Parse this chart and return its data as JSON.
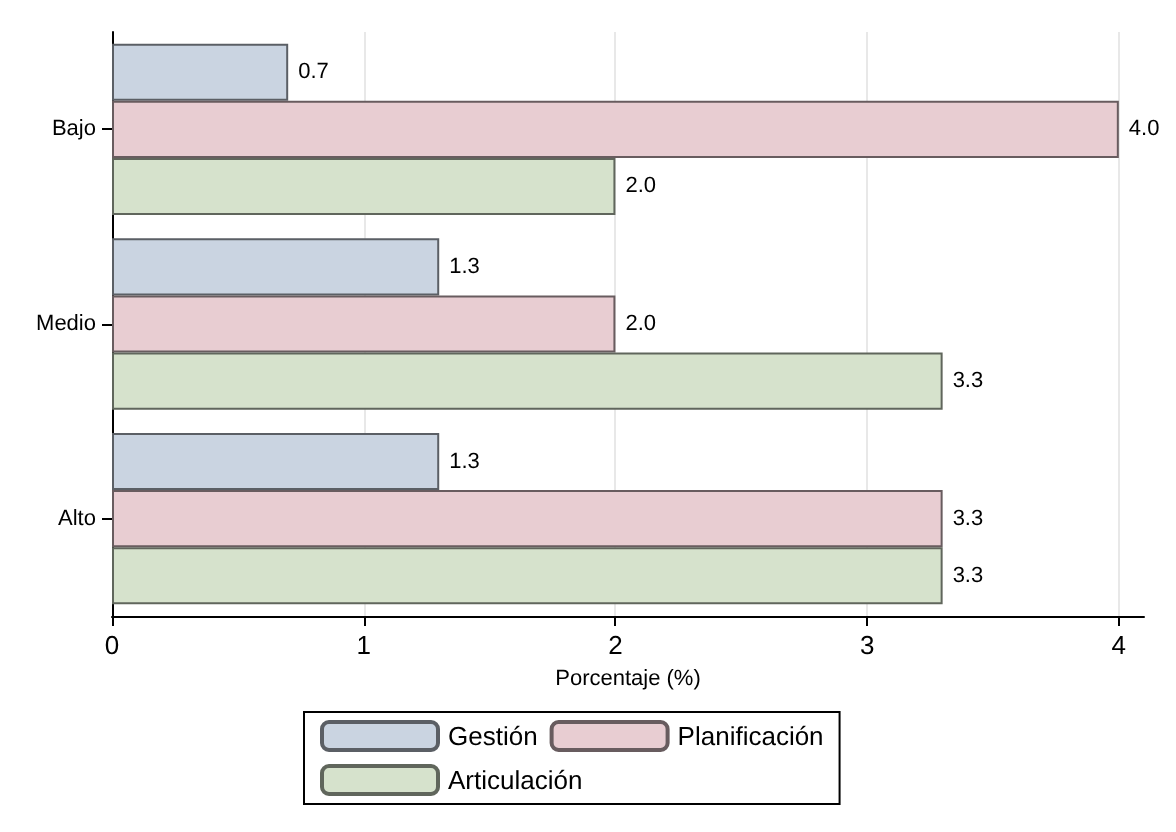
{
  "chart_data": {
    "type": "bar",
    "orientation": "horizontal",
    "xlabel": "Porcentaje (%)",
    "categories": [
      "Bajo",
      "Medio",
      "Alto"
    ],
    "series": [
      {
        "name": "Gestión",
        "color": "#cad4e1",
        "values": [
          0.7,
          1.3,
          1.3
        ],
        "value_labels": [
          "0.7",
          "1.3",
          "1.3"
        ]
      },
      {
        "name": "Planificación",
        "color": "#e8cdd2",
        "values": [
          4.0,
          2.0,
          3.3
        ],
        "value_labels": [
          "4.0",
          "2.0",
          "3.3"
        ]
      },
      {
        "name": "Articulación",
        "color": "#d6e2cc",
        "values": [
          2.0,
          3.3,
          3.3
        ],
        "value_labels": [
          "2.0",
          "3.3",
          "3.3"
        ]
      }
    ],
    "xlim": [
      0,
      4.1
    ],
    "xticks": [
      0,
      1,
      2,
      3,
      4
    ],
    "grid": "x",
    "legend": "bottom"
  }
}
